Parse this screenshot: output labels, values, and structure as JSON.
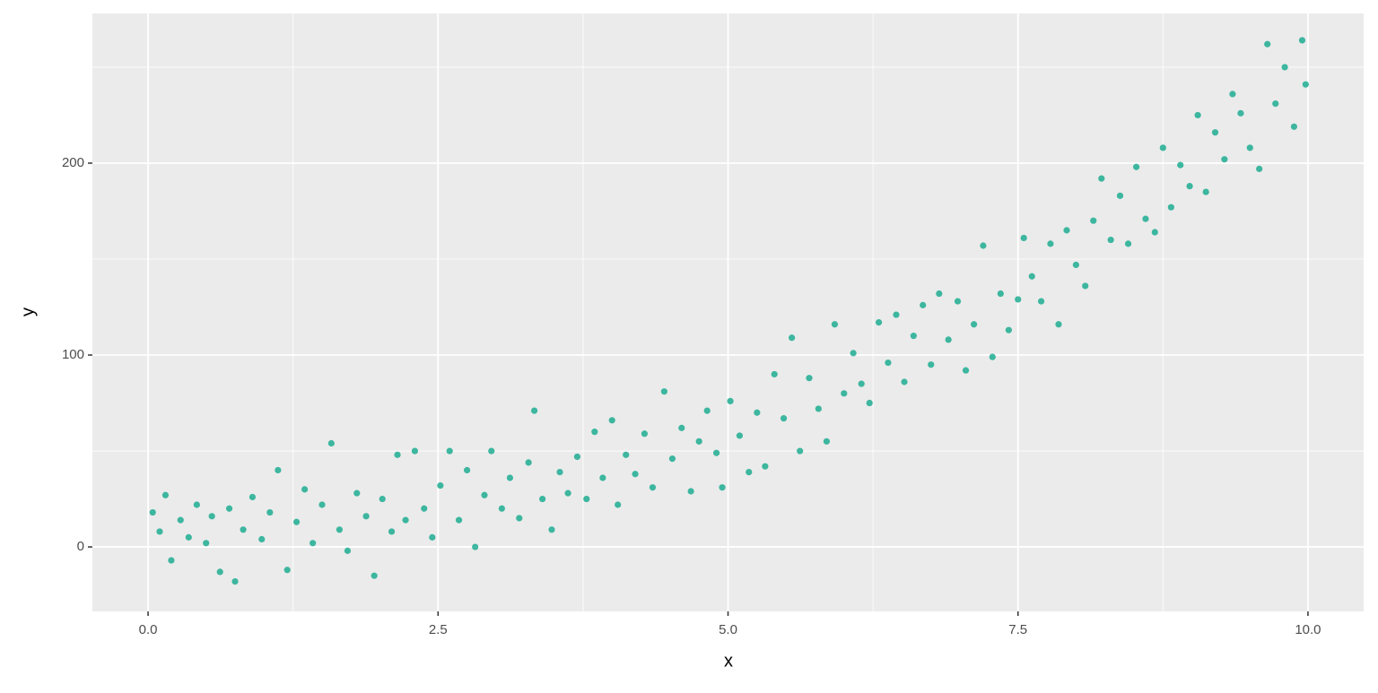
{
  "chart_data": {
    "type": "scatter",
    "x_label": "x",
    "y_label": "y",
    "color": "#1fad92",
    "grid": true,
    "xlim": [
      -0.48,
      10.48
    ],
    "ylim": [
      -33.6,
      278
    ],
    "xticks": [
      {
        "value": 0,
        "label": "0.0"
      },
      {
        "value": 2.5,
        "label": "2.5"
      },
      {
        "value": 5,
        "label": "5.0"
      },
      {
        "value": 7.5,
        "label": "7.5"
      },
      {
        "value": 10,
        "label": "10.0"
      }
    ],
    "yticks": [
      0,
      100,
      200
    ],
    "x_minor_ticks": [
      1.25,
      3.75,
      6.25,
      8.75
    ],
    "y_minor_ticks": [
      50,
      150,
      250
    ],
    "x": [
      0.04,
      0.1,
      0.15,
      0.2,
      0.28,
      0.35,
      0.42,
      0.5,
      0.55,
      0.62,
      0.7,
      0.75,
      0.82,
      0.9,
      0.98,
      1.05,
      1.12,
      1.2,
      1.28,
      1.35,
      1.42,
      1.5,
      1.58,
      1.65,
      1.72,
      1.8,
      1.88,
      1.95,
      2.02,
      2.1,
      2.15,
      2.22,
      2.3,
      2.38,
      2.45,
      2.52,
      2.6,
      2.68,
      2.75,
      2.82,
      2.9,
      2.96,
      3.05,
      3.12,
      3.2,
      3.28,
      3.33,
      3.4,
      3.48,
      3.55,
      3.62,
      3.7,
      3.78,
      3.85,
      3.92,
      4.0,
      4.05,
      4.12,
      4.2,
      4.28,
      4.35,
      4.45,
      4.52,
      4.6,
      4.68,
      4.75,
      4.82,
      4.9,
      4.95,
      5.02,
      5.1,
      5.18,
      5.25,
      5.32,
      5.4,
      5.48,
      5.55,
      5.62,
      5.7,
      5.78,
      5.85,
      5.92,
      6.0,
      6.08,
      6.15,
      6.22,
      6.3,
      6.38,
      6.45,
      6.52,
      6.6,
      6.68,
      6.75,
      6.82,
      6.9,
      6.98,
      7.05,
      7.12,
      7.2,
      7.28,
      7.35,
      7.42,
      7.5,
      7.55,
      7.62,
      7.7,
      7.78,
      7.85,
      7.92,
      8.0,
      8.08,
      8.15,
      8.22,
      8.3,
      8.38,
      8.45,
      8.52,
      8.6,
      8.68,
      8.75,
      8.82,
      8.9,
      8.98,
      9.05,
      9.12,
      9.2,
      9.28,
      9.35,
      9.42,
      9.5,
      9.58,
      9.65,
      9.72,
      9.8,
      9.88,
      9.95,
      9.98
    ],
    "values": [
      18,
      8,
      27,
      -7,
      14,
      5,
      22,
      2,
      16,
      -13,
      20,
      -18,
      9,
      26,
      4,
      18,
      40,
      -12,
      13,
      30,
      2,
      22,
      54,
      9,
      -2,
      28,
      16,
      -15,
      25,
      8,
      48,
      14,
      50,
      20,
      5,
      32,
      50,
      14,
      40,
      0,
      27,
      50,
      20,
      36,
      15,
      44,
      71,
      25,
      9,
      39,
      28,
      47,
      25,
      60,
      36,
      66,
      22,
      48,
      38,
      59,
      31,
      81,
      46,
      62,
      29,
      55,
      71,
      49,
      31,
      76,
      58,
      39,
      70,
      42,
      90,
      67,
      109,
      50,
      88,
      72,
      55,
      116,
      80,
      101,
      85,
      75,
      117,
      96,
      121,
      86,
      110,
      126,
      95,
      132,
      108,
      128,
      92,
      116,
      157,
      99,
      132,
      113,
      129,
      161,
      141,
      128,
      158,
      116,
      165,
      147,
      136,
      170,
      192,
      160,
      183,
      158,
      198,
      171,
      164,
      208,
      177,
      199,
      188,
      225,
      185,
      216,
      202,
      236,
      226,
      208,
      197,
      262,
      231,
      250,
      219,
      264,
      241
    ]
  }
}
